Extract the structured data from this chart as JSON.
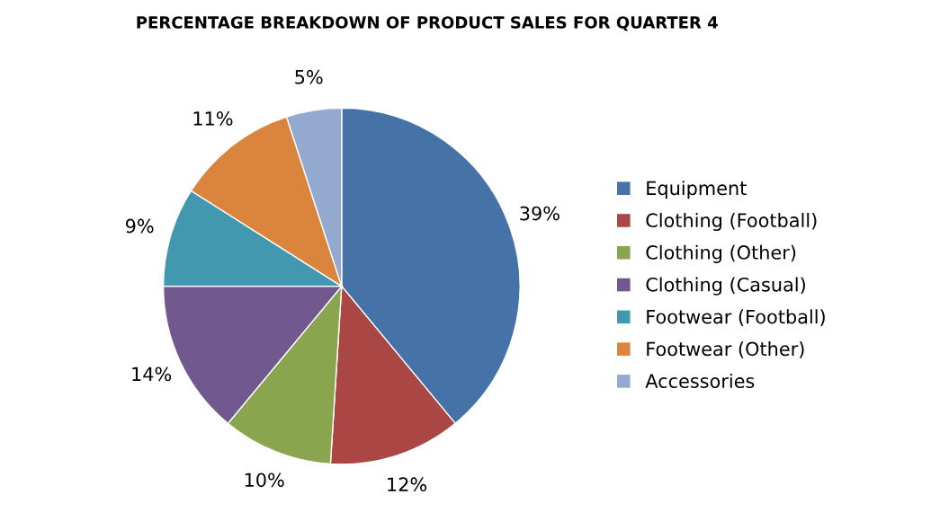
{
  "chart_data": {
    "type": "pie",
    "title": "PERCENTAGE BREAKDOWN OF PRODUCT SALES FOR QUARTER 4",
    "categories": [
      "Equipment",
      "Clothing (Football)",
      "Clothing (Other)",
      "Clothing (Casual)",
      "Footwear (Football)",
      "Footwear (Other)",
      "Accessories"
    ],
    "values": [
      39,
      12,
      10,
      14,
      9,
      11,
      5
    ],
    "value_labels": [
      "39%",
      "12%",
      "10%",
      "14%",
      "9%",
      "11%",
      "5%"
    ],
    "colors": [
      "#4572a7",
      "#aa4643",
      "#89a54e",
      "#71588f",
      "#4198af",
      "#db843d",
      "#93a9cf"
    ],
    "legend": "right"
  }
}
